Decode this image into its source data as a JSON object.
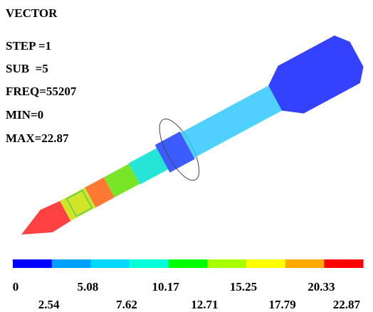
{
  "header": {
    "title": "VECTOR",
    "lines": [
      "STEP =1",
      "SUB  =5",
      "FREQ=55207",
      "MIN=0",
      "MAX=22.87"
    ]
  },
  "legend": {
    "colors": [
      "#0000ff",
      "#00a0ff",
      "#00d8ff",
      "#00ffd8",
      "#00ff00",
      "#a8ff00",
      "#ffff00",
      "#ffa800",
      "#ff0000"
    ],
    "labels": [
      0,
      2.54,
      5.08,
      7.62,
      10.17,
      12.71,
      15.25,
      17.79,
      20.33,
      22.87
    ]
  }
}
